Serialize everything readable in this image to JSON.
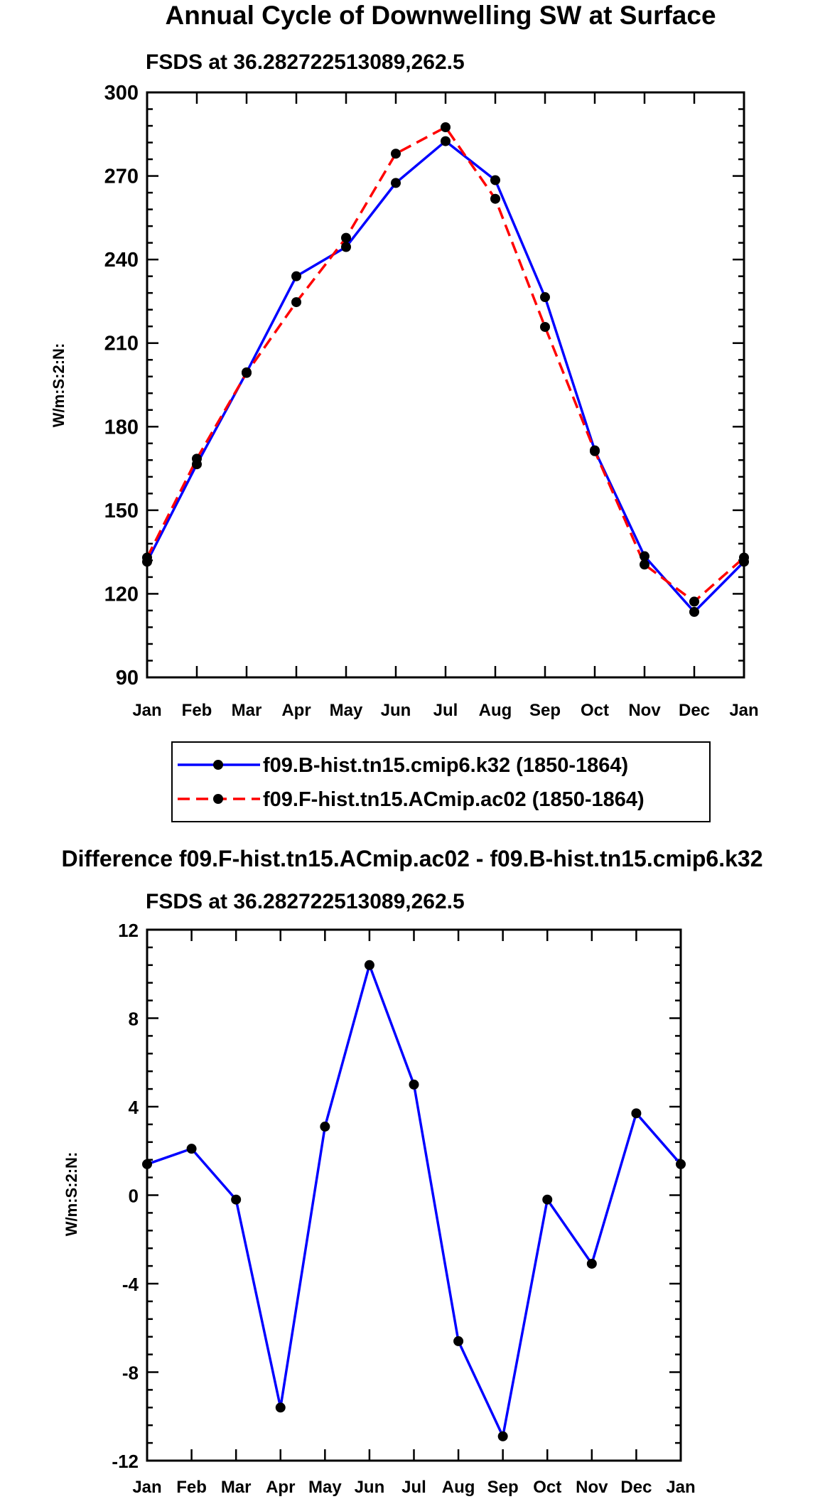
{
  "chart_data": [
    {
      "type": "line",
      "title": "Annual Cycle of Downwelling SW at Surface",
      "subtitle": "FSDS at 36.282722513089,262.5",
      "ylabel": "W/m:S:2:N:",
      "xlabel": "",
      "categories": [
        "Jan",
        "Feb",
        "Mar",
        "Apr",
        "May",
        "Jun",
        "Jul",
        "Aug",
        "Sep",
        "Oct",
        "Nov",
        "Dec",
        "Jan"
      ],
      "ylim": [
        90,
        300
      ],
      "yticks": [
        90,
        120,
        150,
        180,
        210,
        240,
        270,
        300
      ],
      "ytick_labels": [
        "90",
        "120",
        "150",
        "180",
        "210",
        "240",
        "270",
        "300"
      ],
      "grid": false,
      "legend_position": "bottom",
      "series": [
        {
          "name": "f09.B-hist.tn15.cmip6.k32 (1850-1864)",
          "color": "#0000ff",
          "dash": "solid",
          "values": [
            131.5,
            166.5,
            199.5,
            234.0,
            244.5,
            267.5,
            282.5,
            268.5,
            226.5,
            171.5,
            133.5,
            113.5,
            131.5
          ]
        },
        {
          "name": "f09.F-hist.tn15.ACmip.ac02 (1850-1864)",
          "color": "#ff0000",
          "dash": "dashed",
          "values": [
            133.0,
            168.5,
            199.3,
            224.7,
            247.8,
            278.0,
            287.5,
            261.8,
            215.8,
            171.2,
            130.5,
            117.2,
            133.0
          ]
        }
      ]
    },
    {
      "type": "line",
      "title": "Difference f09.F-hist.tn15.ACmip.ac02 - f09.B-hist.tn15.cmip6.k32",
      "subtitle": "FSDS at 36.282722513089,262.5",
      "ylabel": "W/m:S:2:N:",
      "xlabel": "",
      "categories": [
        "Jan",
        "Feb",
        "Mar",
        "Apr",
        "May",
        "Jun",
        "Jul",
        "Aug",
        "Sep",
        "Oct",
        "Nov",
        "Dec",
        "Jan"
      ],
      "ylim": [
        -12,
        12
      ],
      "yticks": [
        -12,
        -8,
        -4,
        0,
        4,
        8,
        12
      ],
      "ytick_labels": [
        "-12",
        "-8",
        "-4",
        "0",
        "4",
        "8",
        "12"
      ],
      "grid": false,
      "series": [
        {
          "name": "Difference",
          "color": "#0000ff",
          "dash": "solid",
          "values": [
            1.4,
            2.1,
            -0.2,
            -9.6,
            3.1,
            10.4,
            5.0,
            -6.6,
            -10.9,
            -0.2,
            -3.1,
            3.7,
            1.4
          ]
        }
      ]
    }
  ]
}
